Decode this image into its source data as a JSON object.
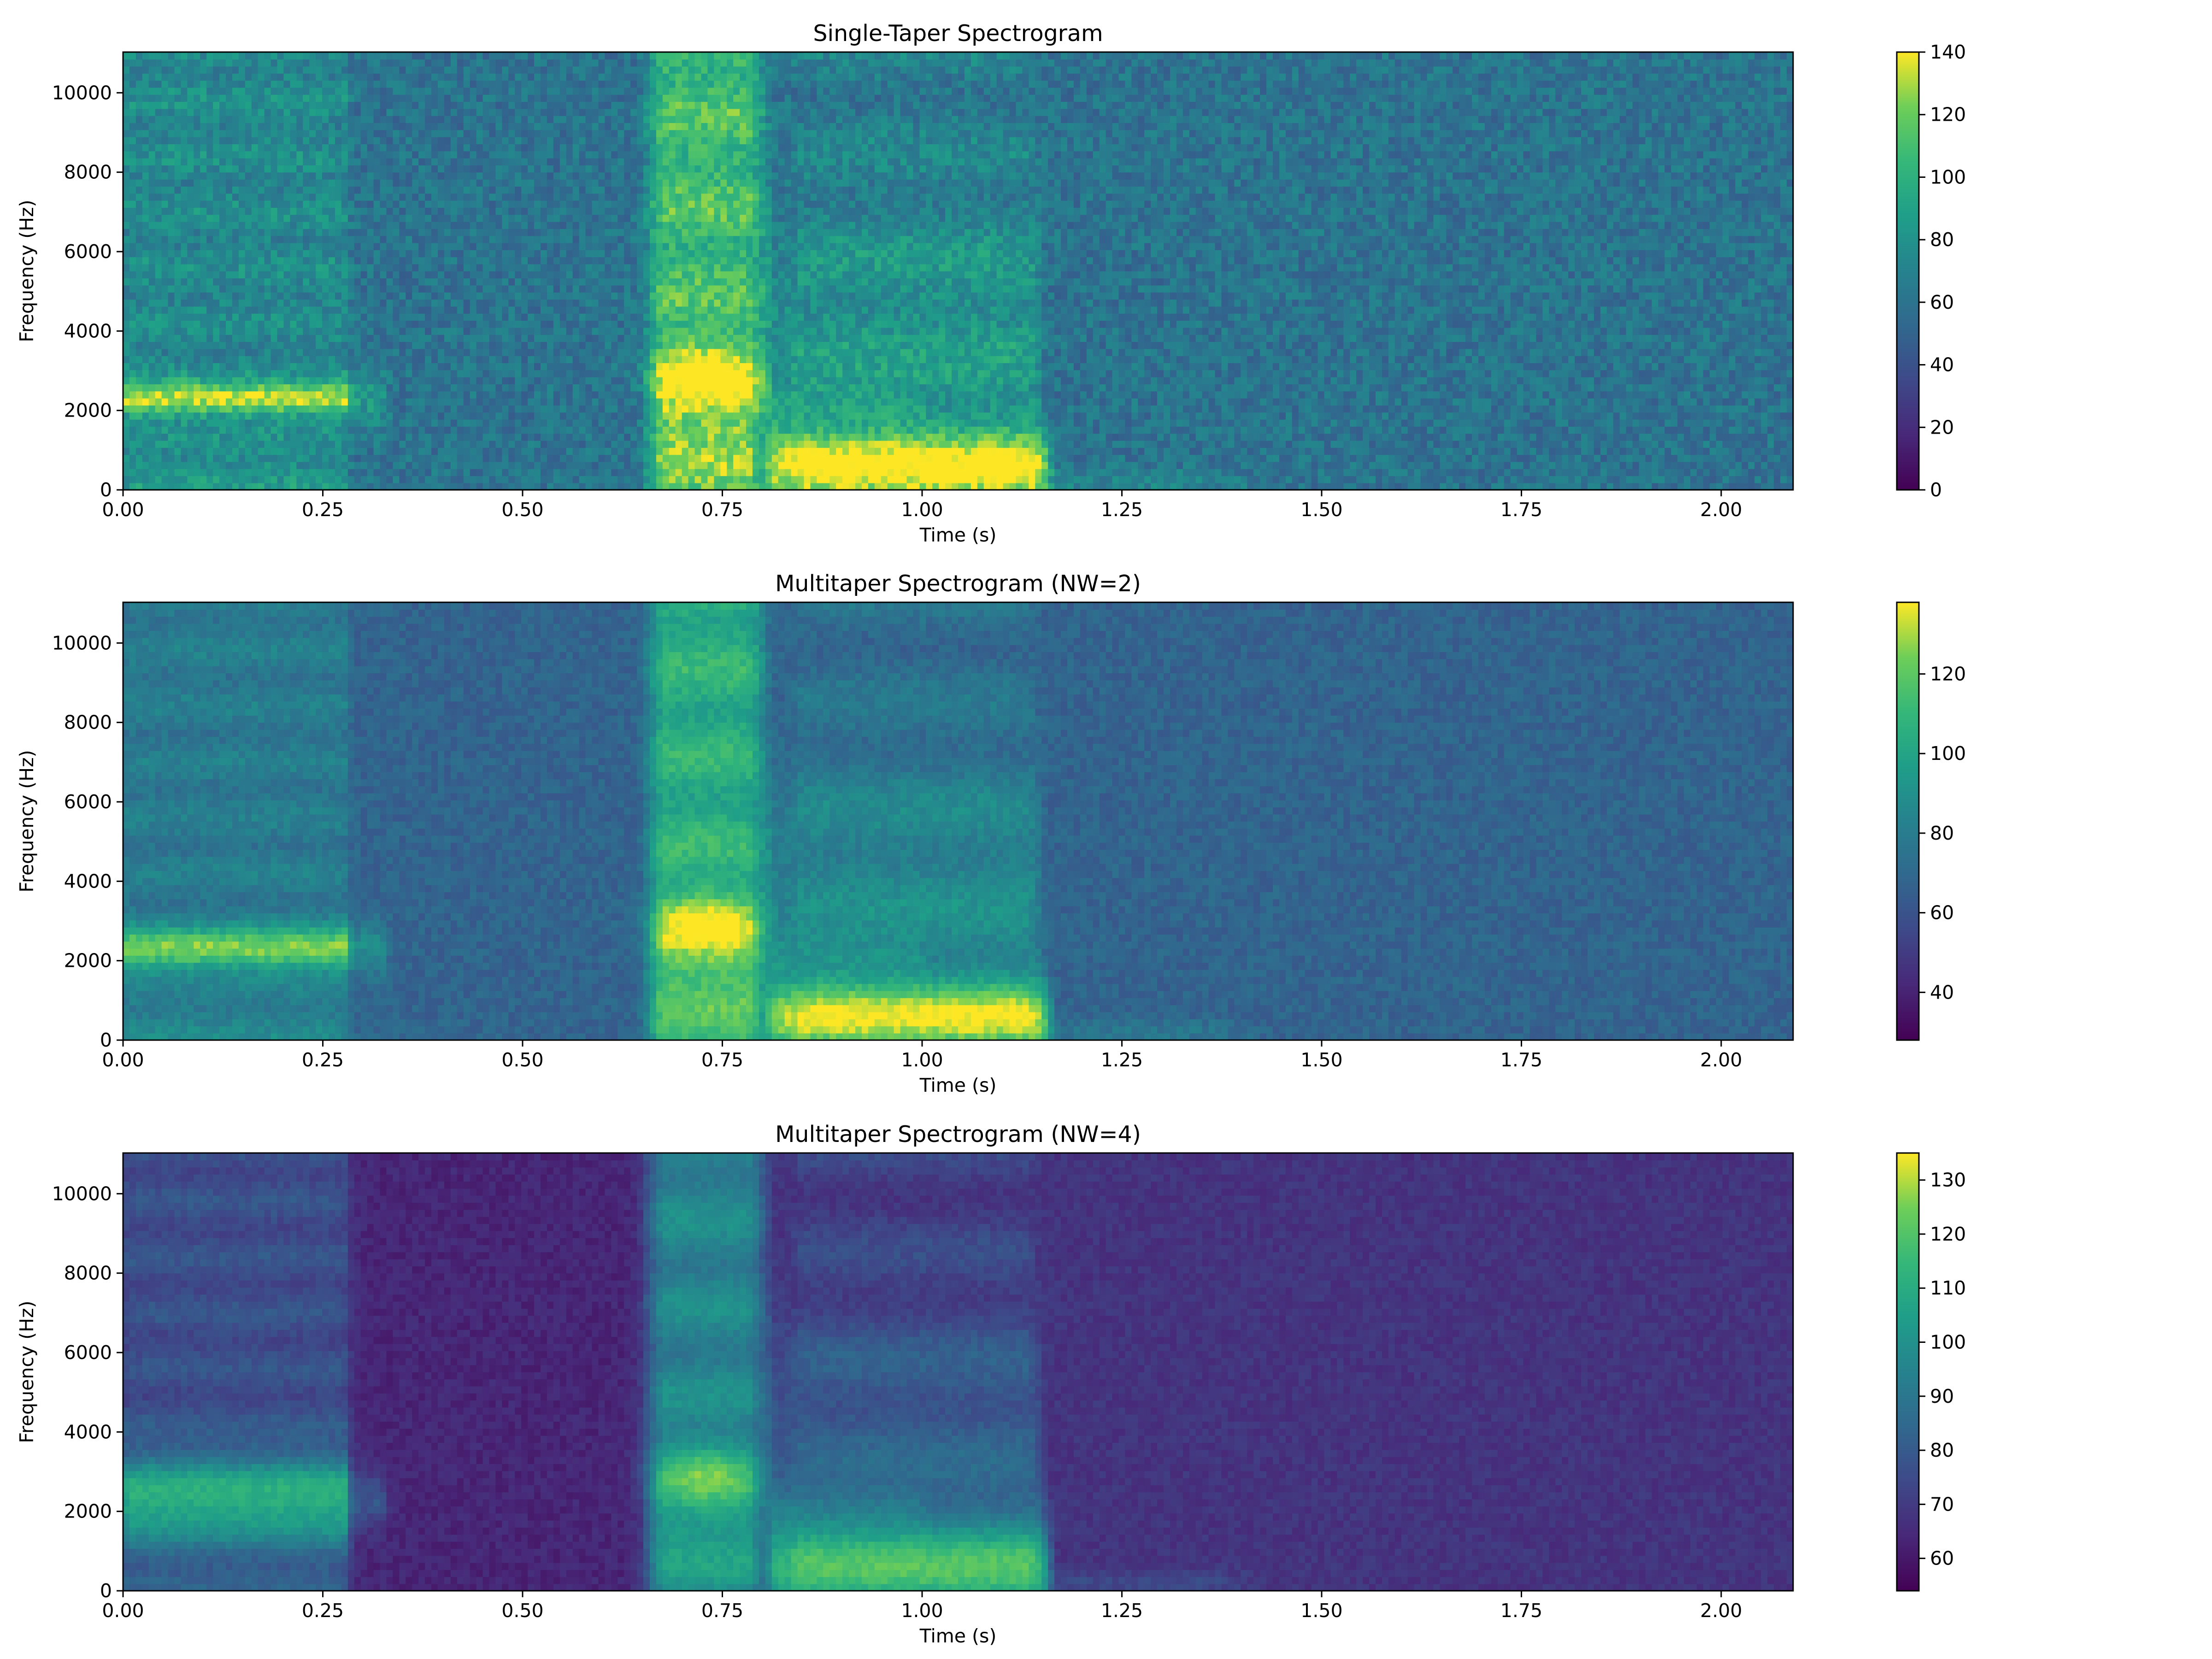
{
  "chart_data": [
    {
      "type": "heatmap",
      "title": "Single-Taper Spectrogram",
      "xlabel": "Time (s)",
      "ylabel": "Frequency (Hz)",
      "xlim": [
        0,
        2.09
      ],
      "ylim": [
        0,
        11025
      ],
      "x_ticks": [
        "0.00",
        "0.25",
        "0.50",
        "0.75",
        "1.00",
        "1.25",
        "1.50",
        "1.75",
        "2.00"
      ],
      "y_ticks": [
        "0",
        "2000",
        "4000",
        "6000",
        "8000",
        "10000"
      ],
      "colormap": "viridis",
      "colorbar_range": [
        0,
        140
      ],
      "colorbar_ticks": [
        "0",
        "20",
        "40",
        "60",
        "80",
        "100",
        "120",
        "140"
      ],
      "grid": false
    },
    {
      "type": "heatmap",
      "title": "Multitaper Spectrogram (NW=2)",
      "xlabel": "Time (s)",
      "ylabel": "Frequency (Hz)",
      "xlim": [
        0,
        2.09
      ],
      "ylim": [
        0,
        11025
      ],
      "x_ticks": [
        "0.00",
        "0.25",
        "0.50",
        "0.75",
        "1.00",
        "1.25",
        "1.50",
        "1.75",
        "2.00"
      ],
      "y_ticks": [
        "0",
        "2000",
        "4000",
        "6000",
        "8000",
        "10000"
      ],
      "colormap": "viridis",
      "colorbar_range": [
        28,
        138
      ],
      "colorbar_ticks": [
        "40",
        "60",
        "80",
        "100",
        "120"
      ],
      "grid": false
    },
    {
      "type": "heatmap",
      "title": "Multitaper Spectrogram (NW=4)",
      "xlabel": "Time (s)",
      "ylabel": "Frequency (Hz)",
      "xlim": [
        0,
        2.09
      ],
      "ylim": [
        0,
        11025
      ],
      "x_ticks": [
        "0.00",
        "0.25",
        "0.50",
        "0.75",
        "1.00",
        "1.25",
        "1.50",
        "1.75",
        "2.00"
      ],
      "y_ticks": [
        "0",
        "2000",
        "4000",
        "6000",
        "8000",
        "10000"
      ],
      "colormap": "viridis",
      "colorbar_range": [
        54,
        135
      ],
      "colorbar_ticks": [
        "60",
        "70",
        "80",
        "90",
        "100",
        "110",
        "120",
        "130"
      ],
      "grid": false
    }
  ]
}
